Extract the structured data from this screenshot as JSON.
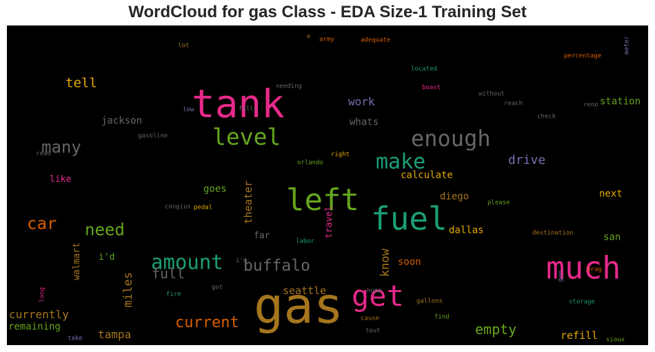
{
  "chart_data": {
    "type": "wordcloud",
    "title": "WordCloud for gas Class - EDA Size-1 Training Set",
    "background": "#000000",
    "colormap": "Dark2",
    "words": [
      {
        "text": "gas",
        "weight": 1.0,
        "color": "#a6761d"
      },
      {
        "text": "tank",
        "weight": 0.82,
        "color": "#e7298a"
      },
      {
        "text": "fuel",
        "weight": 0.68,
        "color": "#1b9e77"
      },
      {
        "text": "much",
        "weight": 0.66,
        "color": "#e7298a"
      },
      {
        "text": "left",
        "weight": 0.64,
        "color": "#66a61e"
      },
      {
        "text": "get",
        "weight": 0.6,
        "color": "#e7298a"
      },
      {
        "text": "level",
        "weight": 0.48,
        "color": "#66a61e"
      },
      {
        "text": "enough",
        "weight": 0.46,
        "color": "#666666"
      },
      {
        "text": "make",
        "weight": 0.44,
        "color": "#1b9e77"
      },
      {
        "text": "amount",
        "weight": 0.42,
        "color": "#1b9e77"
      },
      {
        "text": "many",
        "weight": 0.36,
        "color": "#666666"
      },
      {
        "text": "need",
        "weight": 0.36,
        "color": "#66a61e"
      },
      {
        "text": "car",
        "weight": 0.35,
        "color": "#d95f02"
      },
      {
        "text": "buffalo",
        "weight": 0.34,
        "color": "#666666"
      },
      {
        "text": "current",
        "weight": 0.33,
        "color": "#d95f02"
      },
      {
        "text": "full",
        "weight": 0.3,
        "color": "#666666"
      },
      {
        "text": "empty",
        "weight": 0.3,
        "color": "#66a61e"
      },
      {
        "text": "tell",
        "weight": 0.28,
        "color": "#e6ab02"
      },
      {
        "text": "drive",
        "weight": 0.27,
        "color": "#7570b3"
      },
      {
        "text": "know",
        "weight": 0.27,
        "color": "#a6761d"
      },
      {
        "text": "miles",
        "weight": 0.26,
        "color": "#a6761d"
      },
      {
        "text": "tampa",
        "weight": 0.25,
        "color": "#a6761d"
      },
      {
        "text": "work",
        "weight": 0.23,
        "color": "#7570b3"
      },
      {
        "text": "currently",
        "weight": 0.23,
        "color": "#a6761d"
      },
      {
        "text": "theater",
        "weight": 0.23,
        "color": "#a6761d"
      },
      {
        "text": "refill",
        "weight": 0.22,
        "color": "#e6ab02"
      },
      {
        "text": "seattle",
        "weight": 0.22,
        "color": "#a6761d"
      },
      {
        "text": "jackson",
        "weight": 0.21,
        "color": "#666666"
      },
      {
        "text": "whats",
        "weight": 0.21,
        "color": "#666666"
      },
      {
        "text": "station",
        "weight": 0.21,
        "color": "#66a61e"
      },
      {
        "text": "calculate",
        "weight": 0.21,
        "color": "#e6ab02"
      },
      {
        "text": "remaining",
        "weight": 0.21,
        "color": "#66a61e"
      },
      {
        "text": "soon",
        "weight": 0.21,
        "color": "#d95f02"
      },
      {
        "text": "dallas",
        "weight": 0.21,
        "color": "#e6ab02"
      },
      {
        "text": "next",
        "weight": 0.2,
        "color": "#e6ab02"
      },
      {
        "text": "diego",
        "weight": 0.2,
        "color": "#a6761d"
      },
      {
        "text": "walmart",
        "weight": 0.2,
        "color": "#a6761d"
      },
      {
        "text": "goes",
        "weight": 0.2,
        "color": "#66a61e"
      },
      {
        "text": "travel",
        "weight": 0.2,
        "color": "#e7298a"
      },
      {
        "text": "san",
        "weight": 0.2,
        "color": "#66a61e"
      },
      {
        "text": "far",
        "weight": 0.19,
        "color": "#666666"
      },
      {
        "text": "i'd",
        "weight": 0.19,
        "color": "#66a61e"
      },
      {
        "text": "like",
        "weight": 0.18,
        "color": "#e7298a"
      },
      {
        "text": "gasoline",
        "weight": 0.1,
        "color": "#666666"
      },
      {
        "text": "congius",
        "weight": 0.1,
        "color": "#666666"
      },
      {
        "text": "read",
        "weight": 0.1,
        "color": "#666666"
      },
      {
        "text": "pedal",
        "weight": 0.1,
        "color": "#e6ab02"
      },
      {
        "text": "long",
        "weight": 0.1,
        "color": "#e7298a"
      },
      {
        "text": "take",
        "weight": 0.1,
        "color": "#7570b3"
      },
      {
        "text": "lot",
        "weight": 0.1,
        "color": "#a6761d"
      },
      {
        "text": "e",
        "weight": 0.09,
        "color": "#a6761d"
      },
      {
        "text": "army",
        "weight": 0.1,
        "color": "#d95f02"
      },
      {
        "text": "adequate",
        "weight": 0.1,
        "color": "#d95f02"
      },
      {
        "text": "located",
        "weight": 0.1,
        "color": "#1b9e77"
      },
      {
        "text": "needing",
        "weight": 0.1,
        "color": "#666666"
      },
      {
        "text": "falls",
        "weight": 0.1,
        "color": "#666666"
      },
      {
        "text": "low",
        "weight": 0.1,
        "color": "#7570b3"
      },
      {
        "text": "boast",
        "weight": 0.1,
        "color": "#e7298a"
      },
      {
        "text": "without",
        "weight": 0.1,
        "color": "#666666"
      },
      {
        "text": "reach",
        "weight": 0.1,
        "color": "#666666"
      },
      {
        "text": "check",
        "weight": 0.1,
        "color": "#666666"
      },
      {
        "text": "reno",
        "weight": 0.1,
        "color": "#666666"
      },
      {
        "text": "percentage",
        "weight": 0.1,
        "color": "#d95f02"
      },
      {
        "text": "meter",
        "weight": 0.1,
        "color": "#7570b3"
      },
      {
        "text": "orlando",
        "weight": 0.1,
        "color": "#66a61e"
      },
      {
        "text": "right",
        "weight": 0.1,
        "color": "#e6ab02"
      },
      {
        "text": "please",
        "weight": 0.1,
        "color": "#66a61e"
      },
      {
        "text": "destination",
        "weight": 0.1,
        "color": "#a6761d"
      },
      {
        "text": "labor",
        "weight": 0.1,
        "color": "#1b9e77"
      },
      {
        "text": "i'm",
        "weight": 0.1,
        "color": "#666666"
      },
      {
        "text": "brag",
        "weight": 0.1,
        "color": "#d95f02"
      },
      {
        "text": "gun",
        "weight": 0.1,
        "color": "#7570b3"
      },
      {
        "text": "fire",
        "weight": 0.1,
        "color": "#1b9e77"
      },
      {
        "text": "got",
        "weight": 0.1,
        "color": "#666666"
      },
      {
        "text": "home",
        "weight": 0.1,
        "color": "#666666"
      },
      {
        "text": "gallons",
        "weight": 0.1,
        "color": "#a6761d"
      },
      {
        "text": "storage",
        "weight": 0.1,
        "color": "#1b9e77"
      },
      {
        "text": "cause",
        "weight": 0.1,
        "color": "#a6761d"
      },
      {
        "text": "find",
        "weight": 0.1,
        "color": "#66a61e"
      },
      {
        "text": "tout",
        "weight": 0.1,
        "color": "#666666"
      },
      {
        "text": "sioux",
        "weight": 0.1,
        "color": "#66a61e"
      }
    ]
  }
}
